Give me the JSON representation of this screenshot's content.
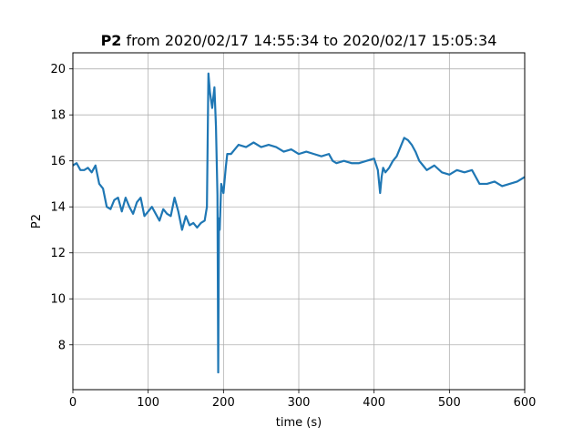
{
  "chart_data": {
    "type": "line",
    "title_bold": "P2",
    "title_rest": " from 2020/02/17 14:55:34 to 2020/02/17 15:05:34",
    "xlabel": "time (s)",
    "ylabel": "P2",
    "xlim": [
      0,
      600
    ],
    "ylim": [
      6.05,
      20.7
    ],
    "xticks": [
      0,
      100,
      200,
      300,
      400,
      500,
      600
    ],
    "yticks": [
      8,
      10,
      12,
      14,
      16,
      18,
      20
    ],
    "grid": true,
    "series": [
      {
        "color": "#1f77b4",
        "x": [
          0,
          5,
          10,
          15,
          20,
          25,
          30,
          35,
          40,
          45,
          50,
          55,
          60,
          65,
          70,
          75,
          80,
          85,
          90,
          95,
          100,
          105,
          110,
          115,
          120,
          125,
          130,
          135,
          140,
          145,
          150,
          155,
          160,
          165,
          170,
          175,
          178,
          180,
          182,
          185,
          188,
          190,
          192,
          193,
          194,
          195,
          197,
          200,
          203,
          205,
          210,
          215,
          220,
          230,
          240,
          250,
          260,
          270,
          280,
          290,
          300,
          310,
          320,
          330,
          340,
          345,
          350,
          360,
          370,
          380,
          390,
          400,
          405,
          408,
          410,
          412,
          415,
          420,
          425,
          430,
          435,
          440,
          445,
          450,
          455,
          460,
          465,
          470,
          480,
          490,
          500,
          510,
          520,
          530,
          535,
          540,
          550,
          560,
          570,
          580,
          590,
          600
        ],
        "y": [
          15.8,
          15.9,
          15.6,
          15.6,
          15.7,
          15.5,
          15.8,
          15.0,
          14.8,
          14.0,
          13.9,
          14.3,
          14.4,
          13.8,
          14.4,
          14.0,
          13.7,
          14.2,
          14.4,
          13.6,
          13.8,
          14.0,
          13.7,
          13.4,
          13.9,
          13.7,
          13.6,
          14.4,
          13.8,
          13.0,
          13.6,
          13.2,
          13.3,
          13.1,
          13.3,
          13.4,
          14.0,
          19.8,
          19.0,
          18.3,
          19.2,
          17.5,
          14.5,
          6.8,
          13.5,
          13.0,
          15.0,
          14.6,
          15.7,
          16.3,
          16.3,
          16.5,
          16.7,
          16.6,
          16.8,
          16.6,
          16.7,
          16.6,
          16.4,
          16.5,
          16.3,
          16.4,
          16.3,
          16.2,
          16.3,
          16.0,
          15.9,
          16.0,
          15.9,
          15.9,
          16.0,
          16.1,
          15.6,
          14.6,
          15.3,
          15.7,
          15.5,
          15.7,
          16.0,
          16.2,
          16.6,
          17.0,
          16.9,
          16.7,
          16.4,
          16.0,
          15.8,
          15.6,
          15.8,
          15.5,
          15.4,
          15.6,
          15.5,
          15.6,
          15.3,
          15.0,
          15.0,
          15.1,
          14.9,
          15.0,
          15.1,
          15.3
        ]
      }
    ]
  }
}
